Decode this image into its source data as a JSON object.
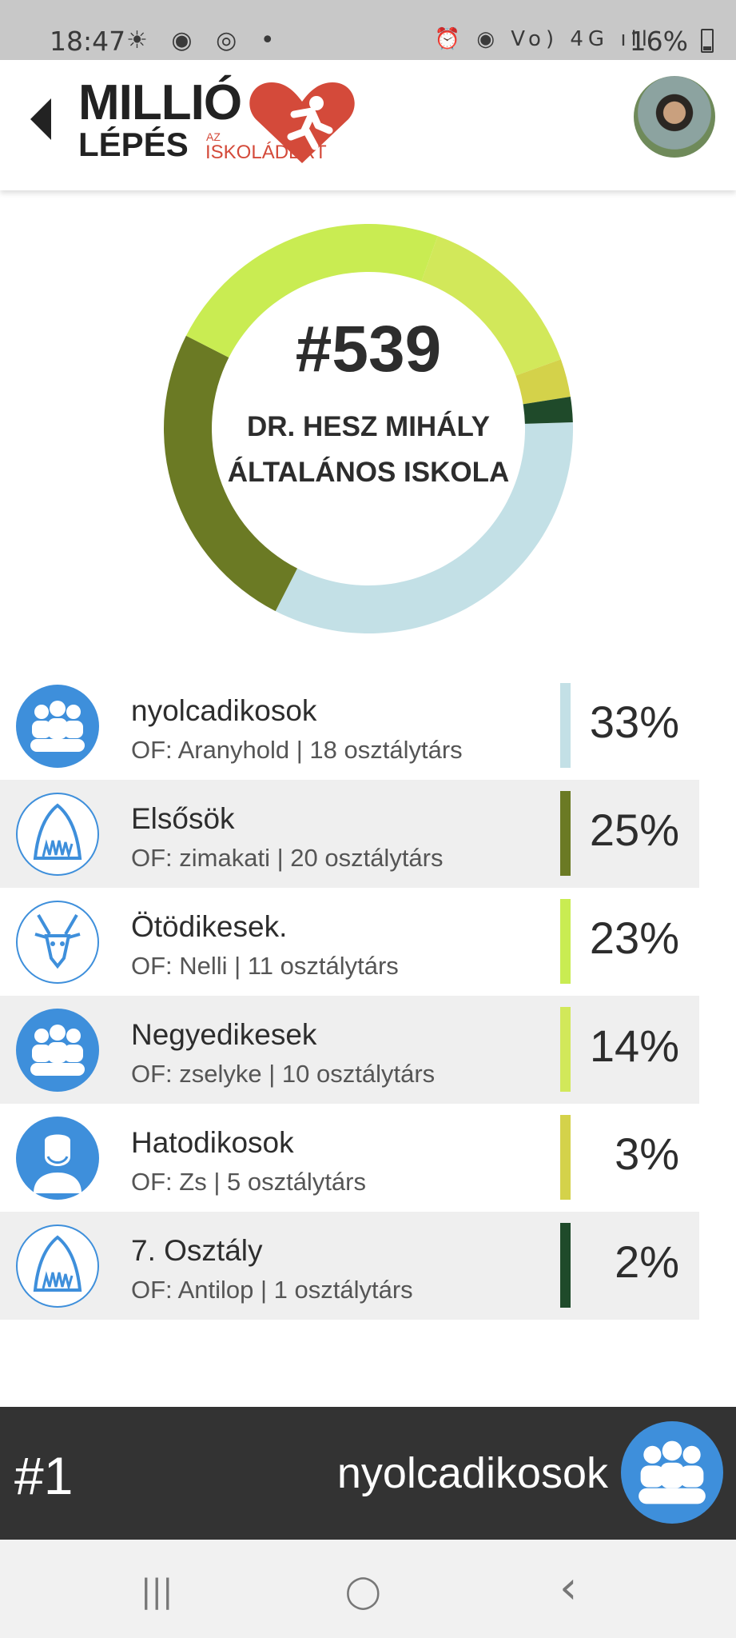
{
  "status_bar": {
    "time": "18:47",
    "battery": "16%",
    "left_icons": "☀ ◉ ◎ •",
    "right_icons": "⏰ ◉ Vo) 4G ıll"
  },
  "header": {
    "logo_line1": "MILLIÓ",
    "logo_line2": "LÉPÉS",
    "logo_small": "AZ",
    "logo_line3": "ISKOLÁDÉRT"
  },
  "center": {
    "rank": "#539",
    "school_name": "DR. HESZ MIHÁLY ÁLTALÁNOS ISKOLA"
  },
  "colors": {
    "accent": "#3e8fdb",
    "brand_red": "#d44a3a"
  },
  "chart_data": {
    "type": "pie",
    "categories": [
      "nyolcadikosok",
      "Elsősök",
      "Ötödikesek.",
      "Negyedikesek",
      "Hatodikosok",
      "7. Osztály"
    ],
    "values": [
      33,
      25,
      23,
      14,
      3,
      2
    ],
    "colors": [
      "#c3e0e6",
      "#6b7a24",
      "#c9ec52",
      "#d2e85a",
      "#d4d24a",
      "#1f4a2a"
    ]
  },
  "classes": [
    {
      "name": "nyolcadikosok",
      "sub": "OF: Aranyhold | 18 osztálytárs",
      "pct": "33%",
      "icon": "group-icon",
      "color": "#c3e0e6"
    },
    {
      "name": "Elsősök",
      "sub": "OF: zimakati | 20 osztálytárs",
      "pct": "25%",
      "icon": "shark-icon",
      "color": "#6b7a24"
    },
    {
      "name": "Ötödikesek.",
      "sub": "OF: Nelli  | 11 osztálytárs",
      "pct": "23%",
      "icon": "antelope-icon",
      "color": "#c9ec52"
    },
    {
      "name": "Negyedikesek",
      "sub": "OF: zselyke | 10 osztálytárs",
      "pct": "14%",
      "icon": "group-icon",
      "color": "#d2e85a"
    },
    {
      "name": "Hatodikosok",
      "sub": "OF: Zs | 5 osztálytárs",
      "pct": "3%",
      "icon": "bearded-man-icon",
      "color": "#d4d24a"
    },
    {
      "name": "7. Osztály",
      "sub": "OF: Antilop | 1 osztálytárs",
      "pct": "2%",
      "icon": "shark-icon",
      "color": "#1f4a2a"
    }
  ],
  "footer": {
    "rank": "#1",
    "name": "nyolcadikosok"
  },
  "navbar": {
    "recent": "|||",
    "home": "◯",
    "back": "‹"
  }
}
